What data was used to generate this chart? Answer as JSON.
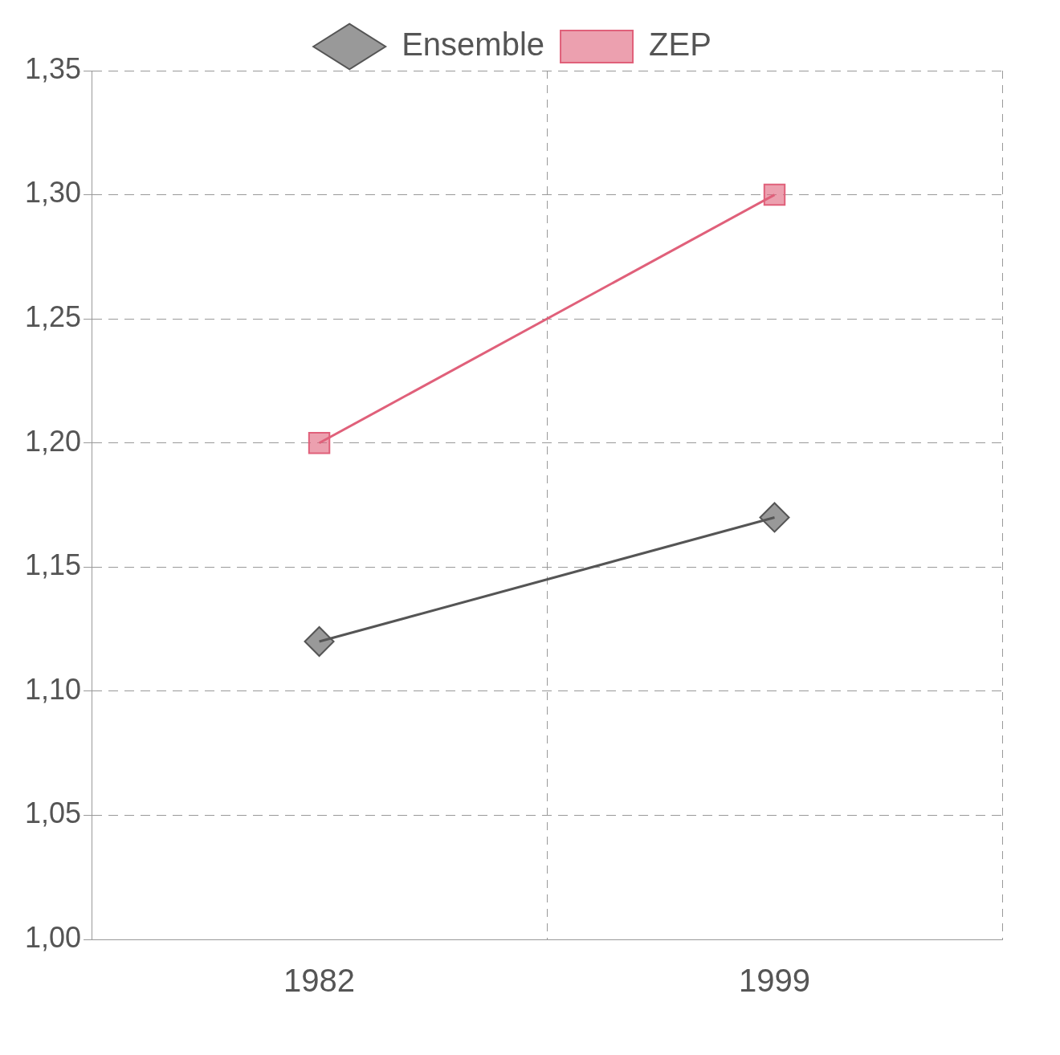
{
  "chart_data": {
    "type": "line",
    "categories": [
      "1982",
      "1999"
    ],
    "series": [
      {
        "name": "Ensemble",
        "color": "#555555",
        "marker": "diamond",
        "values": [
          1.12,
          1.17
        ]
      },
      {
        "name": "ZEP",
        "color": "#e0607a",
        "marker": "square",
        "values": [
          1.2,
          1.3
        ]
      }
    ],
    "ylim": [
      1.0,
      1.35
    ],
    "yticks": [
      {
        "value": 1.0,
        "label": "1,00"
      },
      {
        "value": 1.05,
        "label": "1,05"
      },
      {
        "value": 1.1,
        "label": "1,10"
      },
      {
        "value": 1.15,
        "label": "1,15"
      },
      {
        "value": 1.2,
        "label": "1,20"
      },
      {
        "value": 1.25,
        "label": "1,25"
      },
      {
        "value": 1.3,
        "label": "1,30"
      },
      {
        "value": 1.35,
        "label": "1,35"
      }
    ],
    "grid": true,
    "legend": "top",
    "line_style": "solid"
  }
}
